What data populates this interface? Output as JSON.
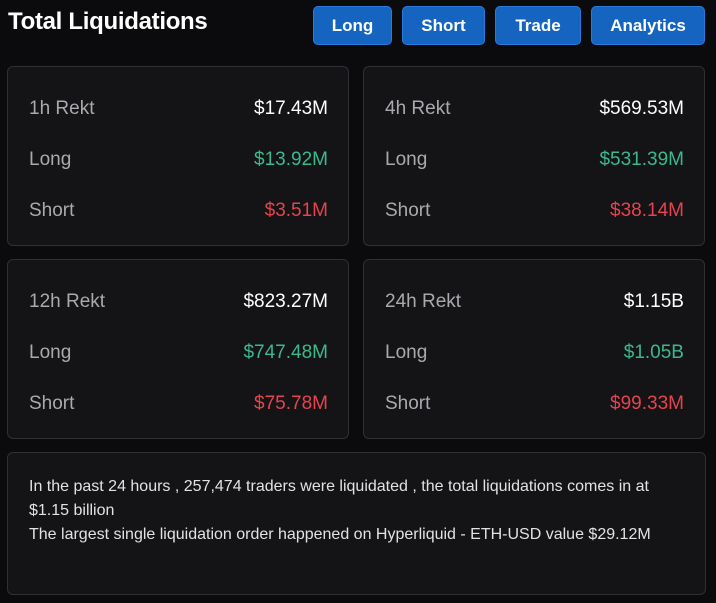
{
  "header": {
    "title": "Total Liquidations",
    "tabs": [
      {
        "label": "Long"
      },
      {
        "label": "Short"
      },
      {
        "label": "Trade"
      },
      {
        "label": "Analytics"
      }
    ]
  },
  "cards": [
    {
      "period": "1h Rekt",
      "total": "$17.43M",
      "long_label": "Long",
      "long": "$13.92M",
      "short_label": "Short",
      "short": "$3.51M"
    },
    {
      "period": "4h Rekt",
      "total": "$569.53M",
      "long_label": "Long",
      "long": "$531.39M",
      "short_label": "Short",
      "short": "$38.14M"
    },
    {
      "period": "12h Rekt",
      "total": "$823.27M",
      "long_label": "Long",
      "long": "$747.48M",
      "short_label": "Short",
      "short": "$75.78M"
    },
    {
      "period": "24h Rekt",
      "total": "$1.15B",
      "long_label": "Long",
      "long": "$1.05B",
      "short_label": "Short",
      "short": "$99.33M"
    }
  ],
  "summary": {
    "line1": "In the past 24 hours , 257,474 traders were liquidated , the total liquidations comes in at $1.15 billion",
    "line2": "The largest single liquidation order happened on Hyperliquid - ETH-USD value $29.12M"
  },
  "colors": {
    "accent": "#1565c0",
    "long": "#3bb98a",
    "short": "#e5434d"
  }
}
